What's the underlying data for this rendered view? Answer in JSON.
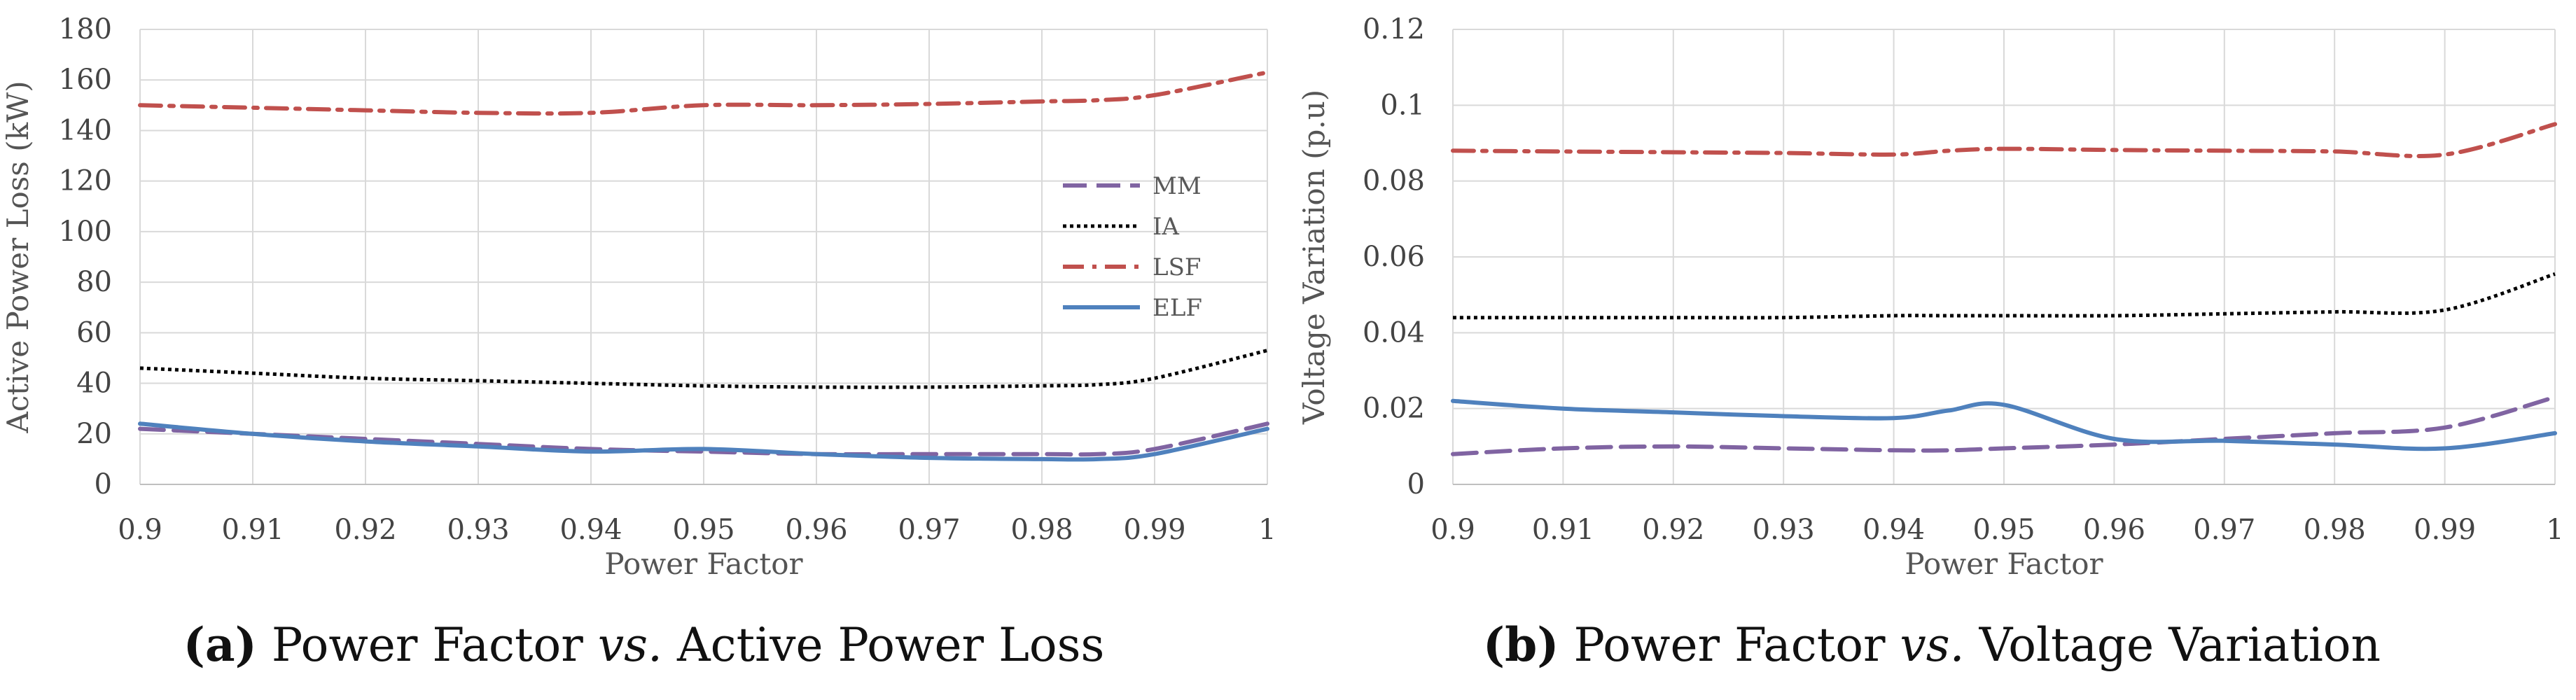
{
  "colors": {
    "MM": "#8064A2",
    "IA": "#000000",
    "LSF": "#C0504D",
    "ELF": "#4F81BD",
    "grid": "#D9D9D9"
  },
  "chart_data": [
    {
      "type": "line",
      "caption": {
        "tag": "(a)",
        "before": "Power Factor",
        "vs": "vs.",
        "after": "Active Power Loss"
      },
      "xlabel": "Power Factor",
      "ylabel": "Active Power Loss (kW)",
      "x_ticks": [
        "0.9",
        "0.91",
        "0.92",
        "0.93",
        "0.94",
        "0.95",
        "0.96",
        "0.97",
        "0.98",
        "0.99",
        "1"
      ],
      "y_ticks": [
        "0",
        "20",
        "40",
        "60",
        "80",
        "100",
        "120",
        "140",
        "160",
        "180"
      ],
      "xlim": [
        0.9,
        1.0
      ],
      "ylim": [
        0,
        180
      ],
      "grid": true,
      "legend": {
        "placement": "right",
        "entries": [
          "MM",
          "IA",
          "LSF",
          "ELF"
        ]
      },
      "x": [
        0.9,
        0.91,
        0.92,
        0.93,
        0.94,
        0.95,
        0.96,
        0.97,
        0.98,
        0.985,
        0.99,
        1.0
      ],
      "series": [
        {
          "name": "MM",
          "style": "dashed",
          "values": [
            22,
            20,
            18,
            16,
            14,
            13,
            12,
            12,
            12,
            12,
            14,
            24
          ]
        },
        {
          "name": "IA",
          "style": "dotted",
          "values": [
            46,
            44,
            42,
            41,
            40,
            39,
            38.5,
            38.5,
            39,
            39.5,
            42,
            53
          ]
        },
        {
          "name": "LSF",
          "style": "dashdot",
          "values": [
            150,
            149,
            148,
            147,
            147,
            150,
            150,
            150.5,
            151.5,
            152,
            154,
            163
          ]
        },
        {
          "name": "ELF",
          "style": "solid",
          "values": [
            24,
            20,
            17,
            15,
            13,
            14,
            12,
            10.5,
            10,
            10,
            12,
            22
          ]
        }
      ]
    },
    {
      "type": "line",
      "caption": {
        "tag": "(b)",
        "before": "Power Factor",
        "vs": "vs.",
        "after": "Voltage Variation"
      },
      "xlabel": "Power Factor",
      "ylabel": "Voltage Variation (p.u)",
      "x_ticks": [
        "0.9",
        "0.91",
        "0.92",
        "0.93",
        "0.94",
        "0.95",
        "0.96",
        "0.97",
        "0.98",
        "0.99",
        "1"
      ],
      "y_ticks": [
        "0",
        "0.02",
        "0.04",
        "0.06",
        "0.08",
        "0.1",
        "0.12"
      ],
      "xlim": [
        0.9,
        1.0
      ],
      "ylim": [
        0,
        0.12
      ],
      "grid": true,
      "x": [
        0.9,
        0.91,
        0.92,
        0.93,
        0.94,
        0.945,
        0.95,
        0.96,
        0.97,
        0.98,
        0.99,
        1.0
      ],
      "series": [
        {
          "name": "MM",
          "style": "dashed",
          "values": [
            0.008,
            0.0095,
            0.01,
            0.0095,
            0.009,
            0.009,
            0.0095,
            0.0105,
            0.012,
            0.0135,
            0.015,
            0.023
          ]
        },
        {
          "name": "IA",
          "style": "dotted",
          "values": [
            0.044,
            0.044,
            0.044,
            0.044,
            0.0445,
            0.0445,
            0.0445,
            0.0445,
            0.045,
            0.0455,
            0.046,
            0.0555
          ]
        },
        {
          "name": "LSF",
          "style": "dashdot",
          "values": [
            0.088,
            0.0878,
            0.0876,
            0.0874,
            0.087,
            0.088,
            0.0885,
            0.0882,
            0.088,
            0.0878,
            0.087,
            0.095
          ]
        },
        {
          "name": "ELF",
          "style": "solid",
          "values": [
            0.022,
            0.02,
            0.019,
            0.018,
            0.0175,
            0.0195,
            0.021,
            0.012,
            0.0115,
            0.0105,
            0.0095,
            0.0135
          ]
        }
      ]
    }
  ]
}
